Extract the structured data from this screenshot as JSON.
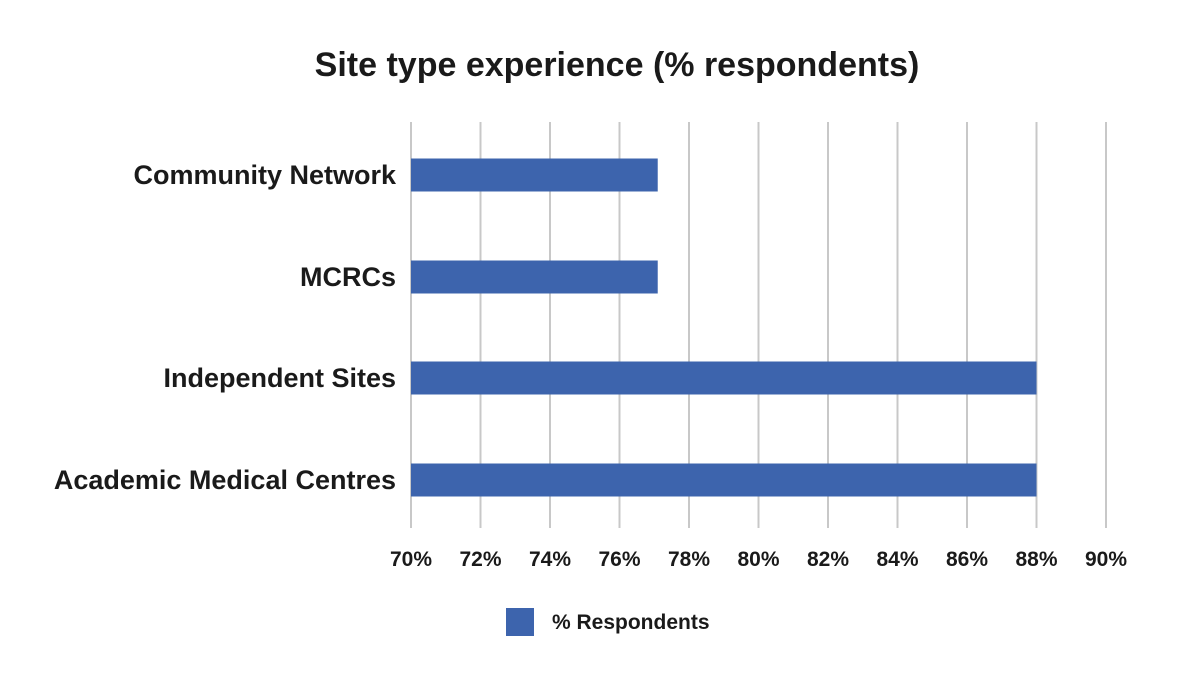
{
  "chart_data": {
    "type": "bar",
    "orientation": "horizontal",
    "title": "Site type experience (% respondents)",
    "xlabel": "",
    "ylabel": "",
    "categories": [
      "Community Network",
      "MCRCs",
      "Independent Sites",
      "Academic Medical Centres"
    ],
    "series": [
      {
        "name": "% Respondents",
        "color": "#3d64ad",
        "values": [
          77.1,
          77.1,
          88.0,
          88.0
        ]
      }
    ],
    "xlim": [
      70,
      90
    ],
    "ticks": [
      70,
      72,
      74,
      76,
      78,
      80,
      82,
      84,
      86,
      88,
      90
    ],
    "tick_labels": [
      "70%",
      "72%",
      "74%",
      "76%",
      "78%",
      "80%",
      "82%",
      "84%",
      "86%",
      "88%",
      "90%"
    ],
    "grid": true,
    "legend_position": "bottom-center"
  }
}
